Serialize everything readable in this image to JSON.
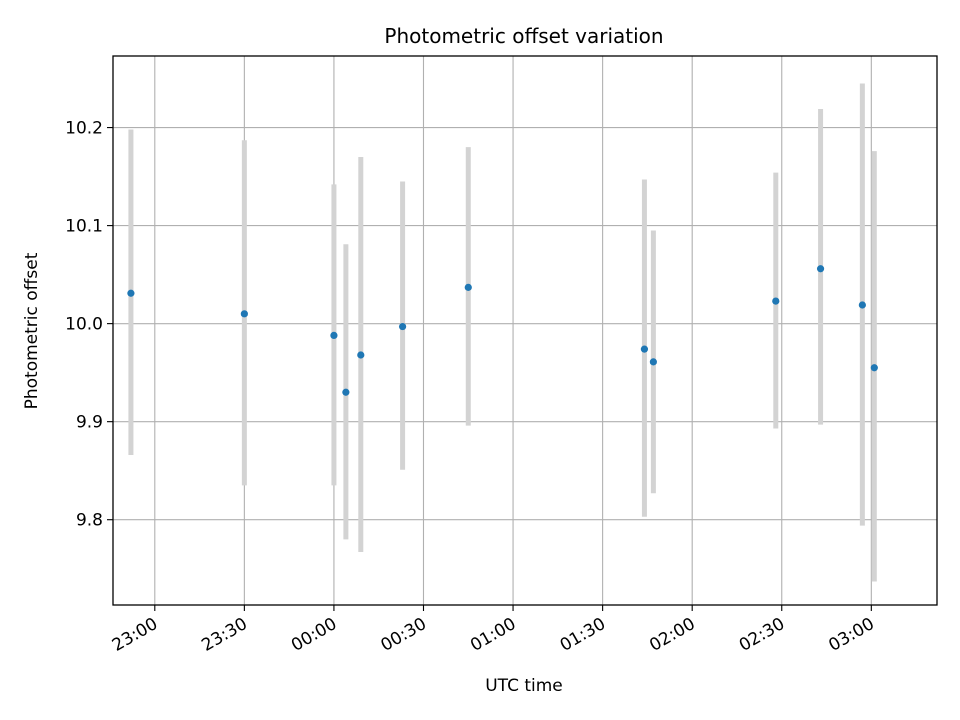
{
  "chart_data": {
    "type": "scatter",
    "title": "Photometric offset variation",
    "xlabel": "UTC time",
    "ylabel": "Photometric offset",
    "x_axis": {
      "kind": "time",
      "range": [
        "22:46",
        "03:22"
      ],
      "ticks": [
        "23:00",
        "23:30",
        "00:00",
        "00:30",
        "01:00",
        "01:30",
        "02:00",
        "02:30",
        "03:00"
      ],
      "tick_times": [
        "23:00",
        "23:30",
        "00:00",
        "00:30",
        "01:00",
        "01:30",
        "02:00",
        "02:30",
        "03:00"
      ],
      "tick_rotation": "30deg"
    },
    "y_axis": {
      "range": [
        9.713,
        10.273
      ],
      "ticks": [
        "9.8",
        "9.9",
        "10.0",
        "10.1",
        "10.2"
      ],
      "tick_values": [
        9.8,
        9.9,
        10.0,
        10.1,
        10.2
      ]
    },
    "grid": true,
    "series": [
      {
        "marker_color": "#1f77b4",
        "errorbar_color": "#d3d3d3",
        "points": [
          {
            "x": "22:52",
            "y": 10.031,
            "yerr": [
              9.866,
              10.198
            ]
          },
          {
            "x": "23:30",
            "y": 10.01,
            "yerr": [
              9.835,
              10.187
            ]
          },
          {
            "x": "00:00",
            "y": 9.988,
            "yerr": [
              9.835,
              10.142
            ]
          },
          {
            "x": "00:04",
            "y": 9.93,
            "yerr": [
              9.78,
              10.081
            ]
          },
          {
            "x": "00:09",
            "y": 9.968,
            "yerr": [
              9.767,
              10.17
            ]
          },
          {
            "x": "00:23",
            "y": 9.997,
            "yerr": [
              9.851,
              10.145
            ]
          },
          {
            "x": "00:45",
            "y": 10.037,
            "yerr": [
              9.896,
              10.18
            ]
          },
          {
            "x": "01:44",
            "y": 9.974,
            "yerr": [
              9.803,
              10.147
            ]
          },
          {
            "x": "01:47",
            "y": 9.961,
            "yerr": [
              9.827,
              10.095
            ]
          },
          {
            "x": "02:28",
            "y": 10.023,
            "yerr": [
              9.893,
              10.154
            ]
          },
          {
            "x": "02:43",
            "y": 10.056,
            "yerr": [
              9.897,
              10.219
            ]
          },
          {
            "x": "02:57",
            "y": 10.019,
            "yerr": [
              9.794,
              10.245
            ]
          },
          {
            "x": "03:01",
            "y": 9.955,
            "yerr": [
              9.737,
              10.176
            ]
          }
        ]
      }
    ]
  }
}
